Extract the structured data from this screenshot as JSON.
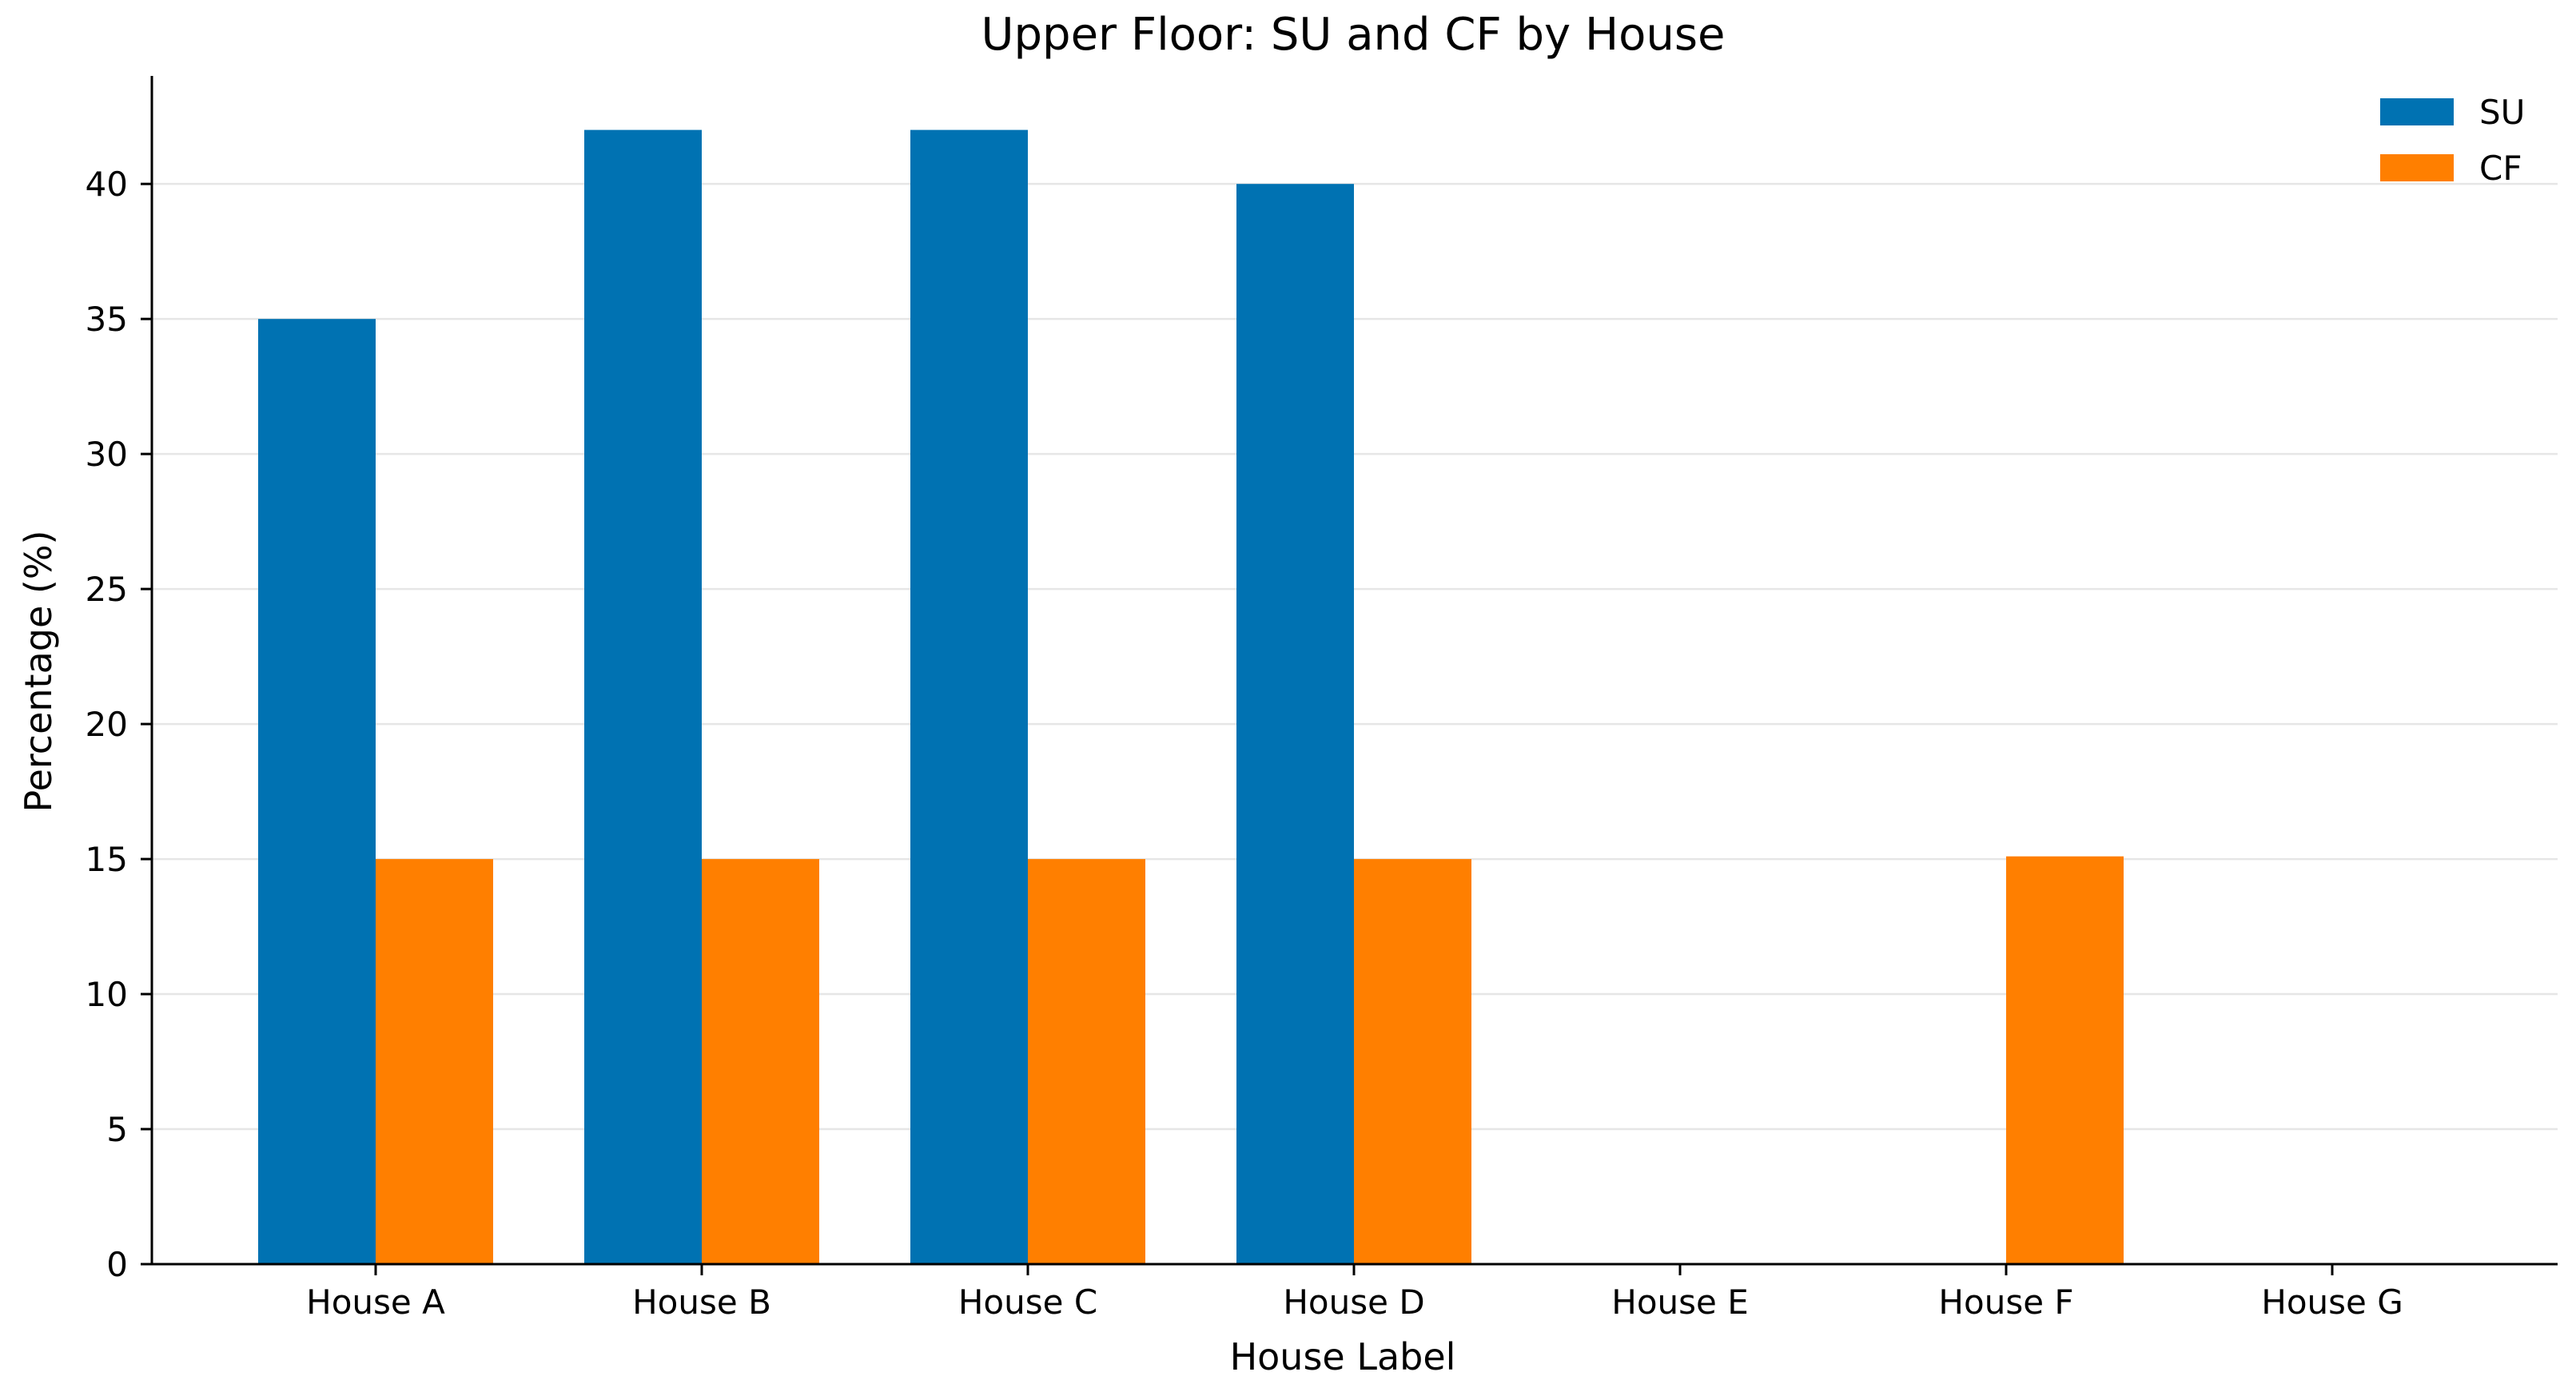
{
  "chart_data": {
    "type": "bar",
    "title": "Upper Floor: SU and CF by House",
    "xlabel": "House Label",
    "ylabel": "Percentage (%)",
    "categories": [
      "House A",
      "House B",
      "House C",
      "House D",
      "House E",
      "House F",
      "House G"
    ],
    "series": [
      {
        "name": "SU",
        "color": "#0072b2",
        "values": [
          35,
          42,
          42,
          40,
          null,
          null,
          null
        ]
      },
      {
        "name": "CF",
        "color": "#ff7f00",
        "values": [
          15,
          15,
          15,
          15,
          null,
          15.1,
          null
        ]
      }
    ],
    "ylim": [
      0,
      44
    ],
    "yticks": [
      0,
      5,
      10,
      15,
      20,
      25,
      30,
      35,
      40
    ],
    "grid": "horizontal",
    "legend_position": "top-right"
  }
}
